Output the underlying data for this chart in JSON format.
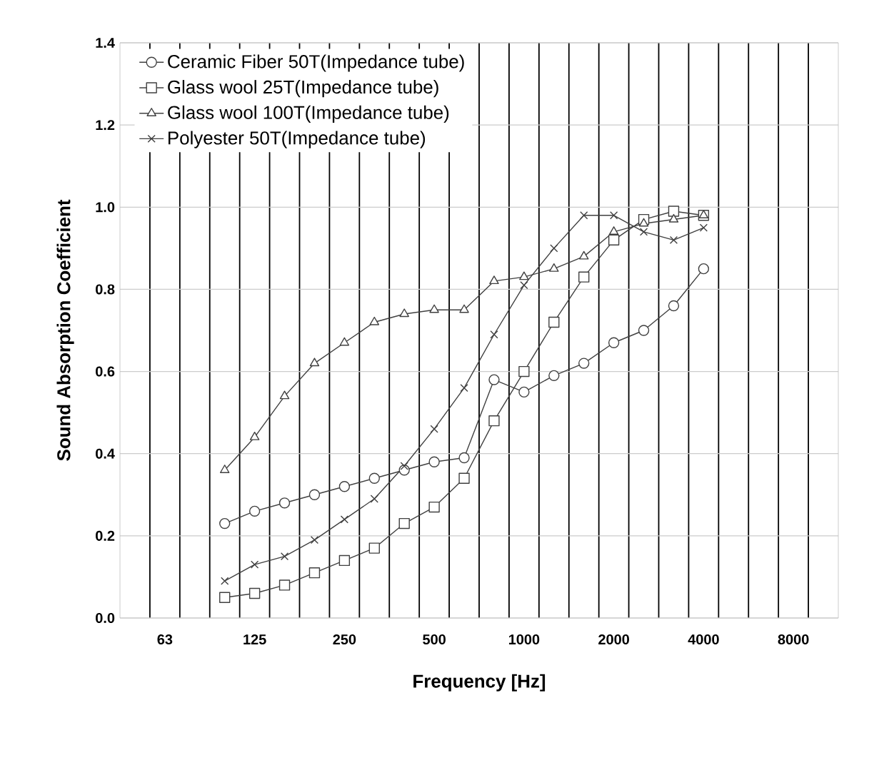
{
  "chart_data": {
    "type": "line",
    "xlabel": "Frequency [Hz]",
    "ylabel": "Sound Absorption Coefficient",
    "categories": [
      null,
      "63",
      null,
      null,
      "125",
      null,
      null,
      "250",
      null,
      null,
      "500",
      null,
      null,
      "1000",
      null,
      null,
      "2000",
      null,
      null,
      "4000",
      null,
      null,
      "8000",
      null
    ],
    "ylim": [
      0,
      1.4
    ],
    "yticks": [
      {
        "value": 0,
        "label": "0.0"
      },
      {
        "value": 0.2,
        "label": "0.2"
      },
      {
        "value": 0.4,
        "label": "0.4"
      },
      {
        "value": 0.6,
        "label": "0.6"
      },
      {
        "value": 0.8,
        "label": "0.8"
      },
      {
        "value": 1.0,
        "label": "1.0"
      },
      {
        "value": 1.2,
        "label": "1.2"
      },
      {
        "value": 1.4,
        "label": "1.4"
      }
    ],
    "grid": true,
    "legend": "top left",
    "series": [
      {
        "name": "Ceramic Fiber 50T(Impedance tube)",
        "color": "#404040",
        "marker": "circle",
        "values": [
          null,
          null,
          null,
          0.23,
          0.26,
          0.28,
          0.3,
          0.32,
          0.34,
          0.36,
          0.38,
          0.39,
          0.58,
          0.55,
          0.59,
          0.62,
          0.67,
          0.7,
          0.76,
          0.85,
          null,
          null,
          null,
          null
        ]
      },
      {
        "name": "Glass wool 25T(Impedance tube)",
        "color": "#404040",
        "marker": "square",
        "values": [
          null,
          null,
          null,
          0.05,
          0.06,
          0.08,
          0.11,
          0.14,
          0.17,
          0.23,
          0.27,
          0.34,
          0.48,
          0.6,
          0.72,
          0.83,
          0.92,
          0.97,
          0.99,
          0.98,
          null,
          null,
          null,
          null
        ]
      },
      {
        "name": "Glass wool 100T(Impedance tube)",
        "color": "#404040",
        "marker": "triangle",
        "values": [
          null,
          null,
          null,
          0.36,
          0.44,
          0.54,
          0.62,
          0.67,
          0.72,
          0.74,
          0.75,
          0.75,
          0.82,
          0.83,
          0.85,
          0.88,
          0.94,
          0.96,
          0.97,
          0.98,
          null,
          null,
          null,
          null
        ]
      },
      {
        "name": "Polyester 50T(Impedance tube)",
        "color": "#404040",
        "marker": "cross",
        "values": [
          null,
          null,
          null,
          0.09,
          0.13,
          0.15,
          0.19,
          0.24,
          0.29,
          0.37,
          0.46,
          0.56,
          0.69,
          0.81,
          0.9,
          0.98,
          0.98,
          0.94,
          0.92,
          0.95,
          null,
          null,
          null,
          null
        ]
      }
    ]
  }
}
